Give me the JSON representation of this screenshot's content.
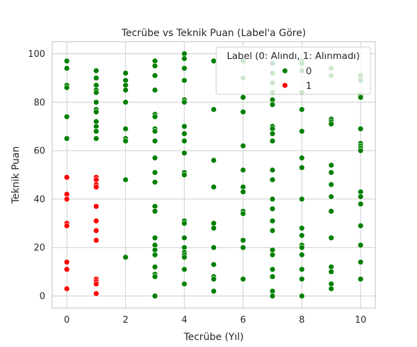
{
  "chart_data": {
    "type": "scatter",
    "title": "Tecrübe vs Teknik Puan (Label'a Göre)",
    "xlabel": "Tecrübe (Yıl)",
    "ylabel": "Teknik Puan",
    "xlim": [
      -0.5,
      10.5
    ],
    "ylim": [
      -5,
      105
    ],
    "x_ticks": [
      0,
      2,
      4,
      6,
      8,
      10
    ],
    "y_ticks": [
      0,
      20,
      40,
      60,
      80,
      100
    ],
    "grid": true,
    "legend": {
      "title": "Label (0: Alındı, 1: Alınmadı)",
      "placement": "top-right"
    },
    "series": [
      {
        "name": "0",
        "color": "#008000",
        "points": [
          [
            0,
            97
          ],
          [
            0,
            94
          ],
          [
            0,
            87
          ],
          [
            0,
            86
          ],
          [
            0,
            74
          ],
          [
            0,
            65
          ],
          [
            1,
            93
          ],
          [
            1,
            90
          ],
          [
            1,
            87
          ],
          [
            1,
            85
          ],
          [
            1,
            84
          ],
          [
            1,
            80
          ],
          [
            1,
            77
          ],
          [
            1,
            76
          ],
          [
            1,
            72
          ],
          [
            1,
            70
          ],
          [
            1,
            68
          ],
          [
            1,
            65
          ],
          [
            2,
            92
          ],
          [
            2,
            89
          ],
          [
            2,
            87
          ],
          [
            2,
            85
          ],
          [
            2,
            80
          ],
          [
            2,
            69
          ],
          [
            2,
            65
          ],
          [
            2,
            64
          ],
          [
            2,
            48
          ],
          [
            2,
            16
          ],
          [
            3,
            97
          ],
          [
            3,
            95
          ],
          [
            3,
            91
          ],
          [
            3,
            85
          ],
          [
            3,
            75
          ],
          [
            3,
            74
          ],
          [
            3,
            69
          ],
          [
            3,
            68
          ],
          [
            3,
            64
          ],
          [
            3,
            57
          ],
          [
            3,
            51
          ],
          [
            3,
            47
          ],
          [
            3,
            37
          ],
          [
            3,
            35
          ],
          [
            3,
            24
          ],
          [
            3,
            21
          ],
          [
            3,
            19
          ],
          [
            3,
            17
          ],
          [
            3,
            12
          ],
          [
            3,
            9
          ],
          [
            3,
            8
          ],
          [
            3,
            0
          ],
          [
            4,
            100
          ],
          [
            4,
            98
          ],
          [
            4,
            94
          ],
          [
            4,
            89
          ],
          [
            4,
            81
          ],
          [
            4,
            80
          ],
          [
            4,
            70
          ],
          [
            4,
            67
          ],
          [
            4,
            64
          ],
          [
            4,
            59
          ],
          [
            4,
            51
          ],
          [
            4,
            50
          ],
          [
            4,
            31
          ],
          [
            4,
            30
          ],
          [
            4,
            24
          ],
          [
            4,
            20
          ],
          [
            4,
            18
          ],
          [
            4,
            17
          ],
          [
            4,
            16
          ],
          [
            4,
            11
          ],
          [
            4,
            5
          ],
          [
            5,
            97
          ],
          [
            5,
            77
          ],
          [
            5,
            56
          ],
          [
            5,
            45
          ],
          [
            5,
            30
          ],
          [
            5,
            28
          ],
          [
            5,
            20
          ],
          [
            5,
            13
          ],
          [
            5,
            8
          ],
          [
            5,
            7
          ],
          [
            5,
            2
          ],
          [
            6,
            97
          ],
          [
            6,
            90
          ],
          [
            6,
            82
          ],
          [
            6,
            76
          ],
          [
            6,
            62
          ],
          [
            6,
            52
          ],
          [
            6,
            45
          ],
          [
            6,
            43
          ],
          [
            6,
            35
          ],
          [
            6,
            34
          ],
          [
            6,
            23
          ],
          [
            6,
            20
          ],
          [
            6,
            7
          ],
          [
            7,
            96
          ],
          [
            7,
            92
          ],
          [
            7,
            88
          ],
          [
            7,
            84
          ],
          [
            7,
            81
          ],
          [
            7,
            79
          ],
          [
            7,
            70
          ],
          [
            7,
            69
          ],
          [
            7,
            67
          ],
          [
            7,
            64
          ],
          [
            7,
            52
          ],
          [
            7,
            48
          ],
          [
            7,
            40
          ],
          [
            7,
            36
          ],
          [
            7,
            31
          ],
          [
            7,
            27
          ],
          [
            7,
            19
          ],
          [
            7,
            17
          ],
          [
            7,
            11
          ],
          [
            7,
            8
          ],
          [
            7,
            2
          ],
          [
            7,
            0
          ],
          [
            8,
            97
          ],
          [
            8,
            96
          ],
          [
            8,
            93
          ],
          [
            8,
            84
          ],
          [
            8,
            77
          ],
          [
            8,
            68
          ],
          [
            8,
            57
          ],
          [
            8,
            53
          ],
          [
            8,
            40
          ],
          [
            8,
            28
          ],
          [
            8,
            25
          ],
          [
            8,
            21
          ],
          [
            8,
            20
          ],
          [
            8,
            17
          ],
          [
            8,
            11
          ],
          [
            8,
            7
          ],
          [
            8,
            0
          ],
          [
            9,
            94
          ],
          [
            9,
            91
          ],
          [
            9,
            73
          ],
          [
            9,
            72
          ],
          [
            9,
            71
          ],
          [
            9,
            54
          ],
          [
            9,
            51
          ],
          [
            9,
            46
          ],
          [
            9,
            41
          ],
          [
            9,
            35
          ],
          [
            9,
            24
          ],
          [
            9,
            12
          ],
          [
            9,
            10
          ],
          [
            9,
            5
          ],
          [
            9,
            3
          ],
          [
            10,
            91
          ],
          [
            10,
            89
          ],
          [
            10,
            83
          ],
          [
            10,
            82
          ],
          [
            10,
            69
          ],
          [
            10,
            63
          ],
          [
            10,
            62
          ],
          [
            10,
            61
          ],
          [
            10,
            60
          ],
          [
            10,
            43
          ],
          [
            10,
            41
          ],
          [
            10,
            38
          ],
          [
            10,
            29
          ],
          [
            10,
            21
          ],
          [
            10,
            14
          ],
          [
            10,
            7
          ]
        ]
      },
      {
        "name": "1",
        "color": "#ff0000",
        "points": [
          [
            0,
            49
          ],
          [
            0,
            42
          ],
          [
            0,
            40
          ],
          [
            0,
            30
          ],
          [
            0,
            29
          ],
          [
            0,
            14
          ],
          [
            0,
            11
          ],
          [
            0,
            3
          ],
          [
            1,
            49
          ],
          [
            1,
            48
          ],
          [
            1,
            46
          ],
          [
            1,
            45
          ],
          [
            1,
            37
          ],
          [
            1,
            31
          ],
          [
            1,
            27
          ],
          [
            1,
            23
          ],
          [
            1,
            7
          ],
          [
            1,
            6
          ],
          [
            1,
            5
          ],
          [
            1,
            1
          ]
        ]
      }
    ]
  }
}
